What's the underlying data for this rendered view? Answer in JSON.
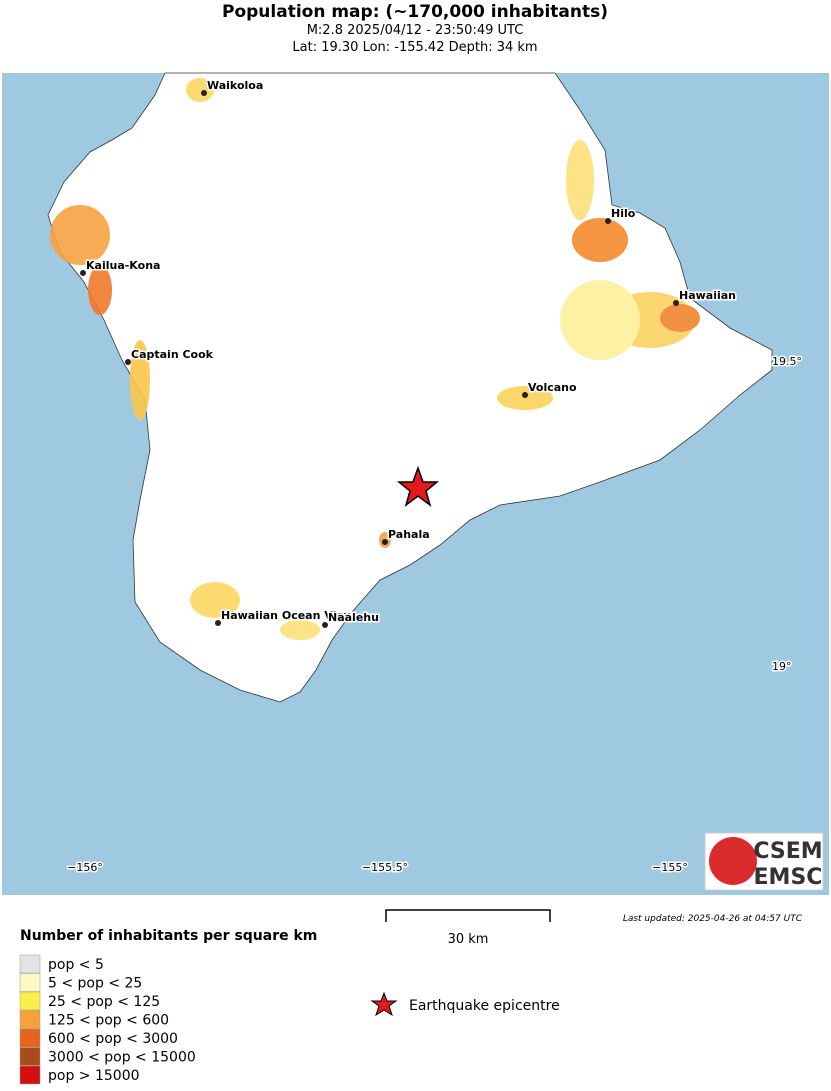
{
  "header": {
    "title": "Population map: (~170,000 inhabitants)",
    "subtitle": "M:2.8 2025/04/12 - 23:50:49 UTC",
    "location": "Lat: 19.30 Lon: -155.42 Depth: 34 km"
  },
  "map": {
    "x_labels": [
      "−156°",
      "−155.5°",
      "−155°"
    ],
    "y_labels": [
      "19.5°",
      "19°"
    ],
    "cities": [
      "Waikoloa",
      "Kailua-Kona",
      "Captain Cook",
      "Hilo",
      "Hawaiian",
      "Volcano",
      "Pahala",
      "Hawaiian Ocean View",
      "Naalehu"
    ],
    "scale_label": "30 km",
    "updated": "Last updated: 2025-04-26 at 04:57 UTC"
  },
  "legend": {
    "title": "Number of inhabitants per square km",
    "items": [
      {
        "label": "pop < 5",
        "color": "#e3e3e3"
      },
      {
        "label": "5 < pop < 25",
        "color": "#fff8c4"
      },
      {
        "label": "25 < pop < 125",
        "color": "#fbee48"
      },
      {
        "label": "125 < pop < 600",
        "color": "#f8a13a"
      },
      {
        "label": "600 < pop < 3000",
        "color": "#e9631c"
      },
      {
        "label": "3000 < pop < 15000",
        "color": "#a84c18"
      },
      {
        "label": "pop > 15000",
        "color": "#d40f0f"
      }
    ]
  },
  "epicentre_label": "Earthquake epicentre",
  "logo": {
    "top": "CSEM",
    "bottom": "EMSC"
  }
}
